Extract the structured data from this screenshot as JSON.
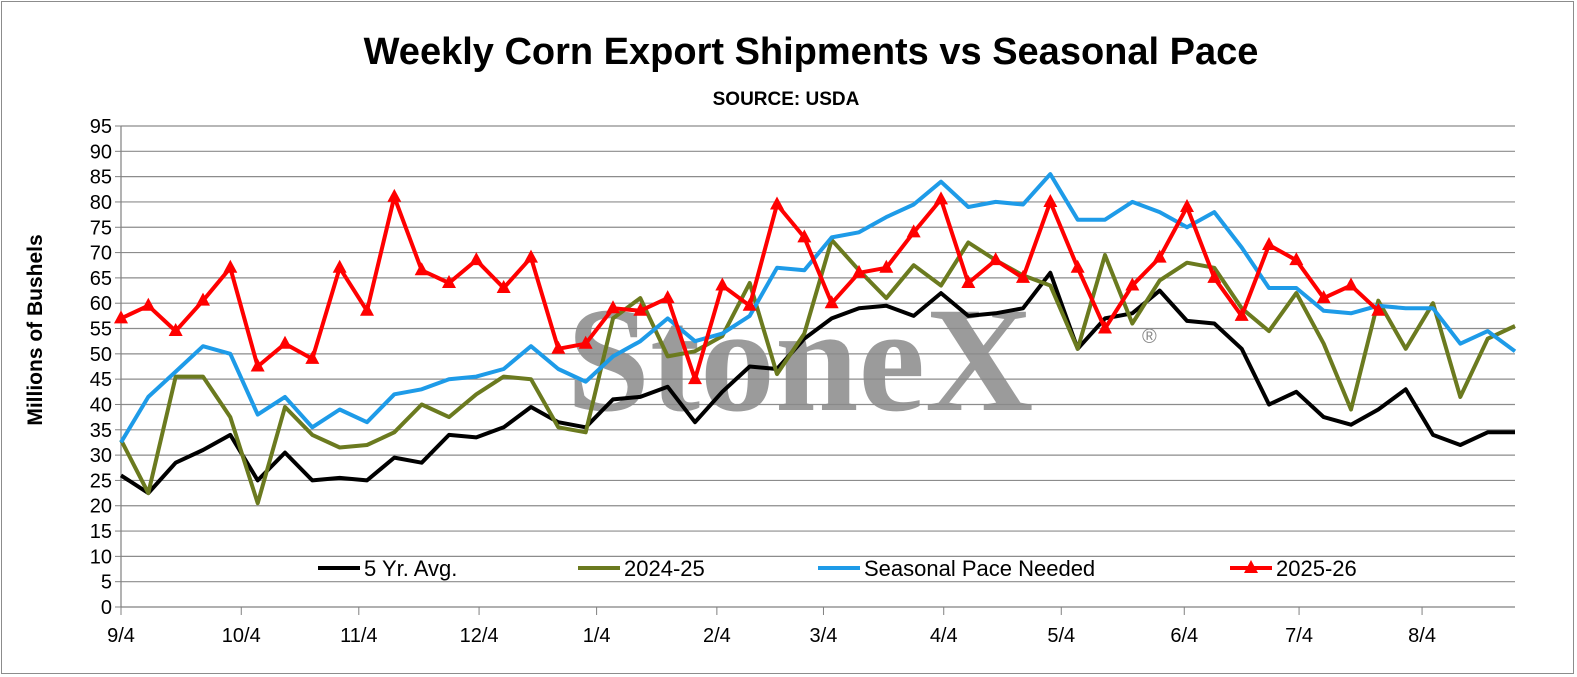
{
  "chart_data": {
    "type": "line",
    "title": "Weekly Corn Export Shipments vs Seasonal Pace",
    "subtitle": "SOURCE: USDA",
    "ylabel": "Millions of Bushels",
    "xlabel": "",
    "ylim": [
      0,
      95
    ],
    "ytick_step": 5,
    "x_tick_labels": [
      "9/4",
      "10/4",
      "11/4",
      "12/4",
      "1/4",
      "2/4",
      "3/4",
      "4/4",
      "5/4",
      "6/4",
      "7/4",
      "8/4"
    ],
    "x_tick_weeks": [
      0,
      4.4,
      8.7,
      13.1,
      17.4,
      21.8,
      25.7,
      30.1,
      34.4,
      38.9,
      43.1,
      47.6
    ],
    "grid": "horizontal",
    "legend_position": "bottom inside",
    "watermark": "StoneX",
    "watermark_mark": "®",
    "series": [
      {
        "name": "5 Yr. Avg.",
        "color": "#000000",
        "marker": "none",
        "values": [
          26,
          22.5,
          28.5,
          31,
          34,
          25,
          30.5,
          25,
          25.5,
          25,
          29.5,
          28.5,
          34,
          33.5,
          35.5,
          39.5,
          36.5,
          35.5,
          41,
          41.5,
          43.5,
          36.5,
          42.5,
          47.5,
          47,
          53,
          57,
          59,
          59.5,
          57.5,
          62,
          57.5,
          58,
          59,
          66,
          51,
          57,
          58,
          62.5,
          56.5,
          56,
          51,
          40,
          42.5,
          37.5,
          36,
          39,
          43,
          34,
          32,
          34.5,
          34.5
        ]
      },
      {
        "name": "2024-25",
        "color": "#6b7a1f",
        "marker": "none",
        "values": [
          33,
          22.5,
          45.5,
          45.5,
          37.5,
          20.5,
          39.5,
          34,
          31.5,
          32,
          34.5,
          40,
          37.5,
          42,
          45.5,
          45,
          35.5,
          34.5,
          57,
          61,
          49.5,
          50.5,
          53.5,
          64,
          46,
          54,
          72.5,
          66.5,
          61,
          67.5,
          63.5,
          72,
          68.5,
          65.5,
          63.5,
          51,
          69.5,
          56,
          64.5,
          68,
          67,
          59,
          54.5,
          62,
          52,
          39,
          60.5,
          51,
          60,
          41.5,
          53,
          55.5
        ]
      },
      {
        "name": "Seasonal Pace Needed",
        "color": "#1e9be8",
        "marker": "none",
        "values": [
          32.5,
          41.5,
          46.5,
          51.5,
          50,
          38,
          41.5,
          35.5,
          39,
          36.5,
          42,
          43,
          45,
          45.5,
          47,
          51.5,
          47,
          44.5,
          49.5,
          52.5,
          57,
          52.5,
          54,
          57.5,
          67,
          66.5,
          73,
          74,
          77,
          79.5,
          84,
          79,
          80,
          79.5,
          85.5,
          76.5,
          76.5,
          80,
          78,
          75,
          78,
          71,
          63,
          63,
          58.5,
          58,
          59.5,
          59,
          59,
          52,
          54.5,
          50.5
        ]
      },
      {
        "name": "2025-26",
        "color": "#ff0000",
        "marker": "triangle",
        "values": [
          57,
          59.5,
          54.5,
          60.5,
          67,
          47.5,
          52,
          49,
          67,
          58.5,
          81,
          66.5,
          64,
          68.5,
          63,
          69,
          51,
          52,
          59,
          58.5,
          61,
          45,
          63.5,
          59.5,
          79.5,
          73,
          60,
          66,
          67,
          74,
          80.5,
          64,
          68.5,
          65,
          80,
          67,
          55,
          63.5,
          69,
          79,
          65,
          57.5,
          71.5,
          68.5,
          61,
          63.5,
          58.5
        ]
      }
    ]
  }
}
